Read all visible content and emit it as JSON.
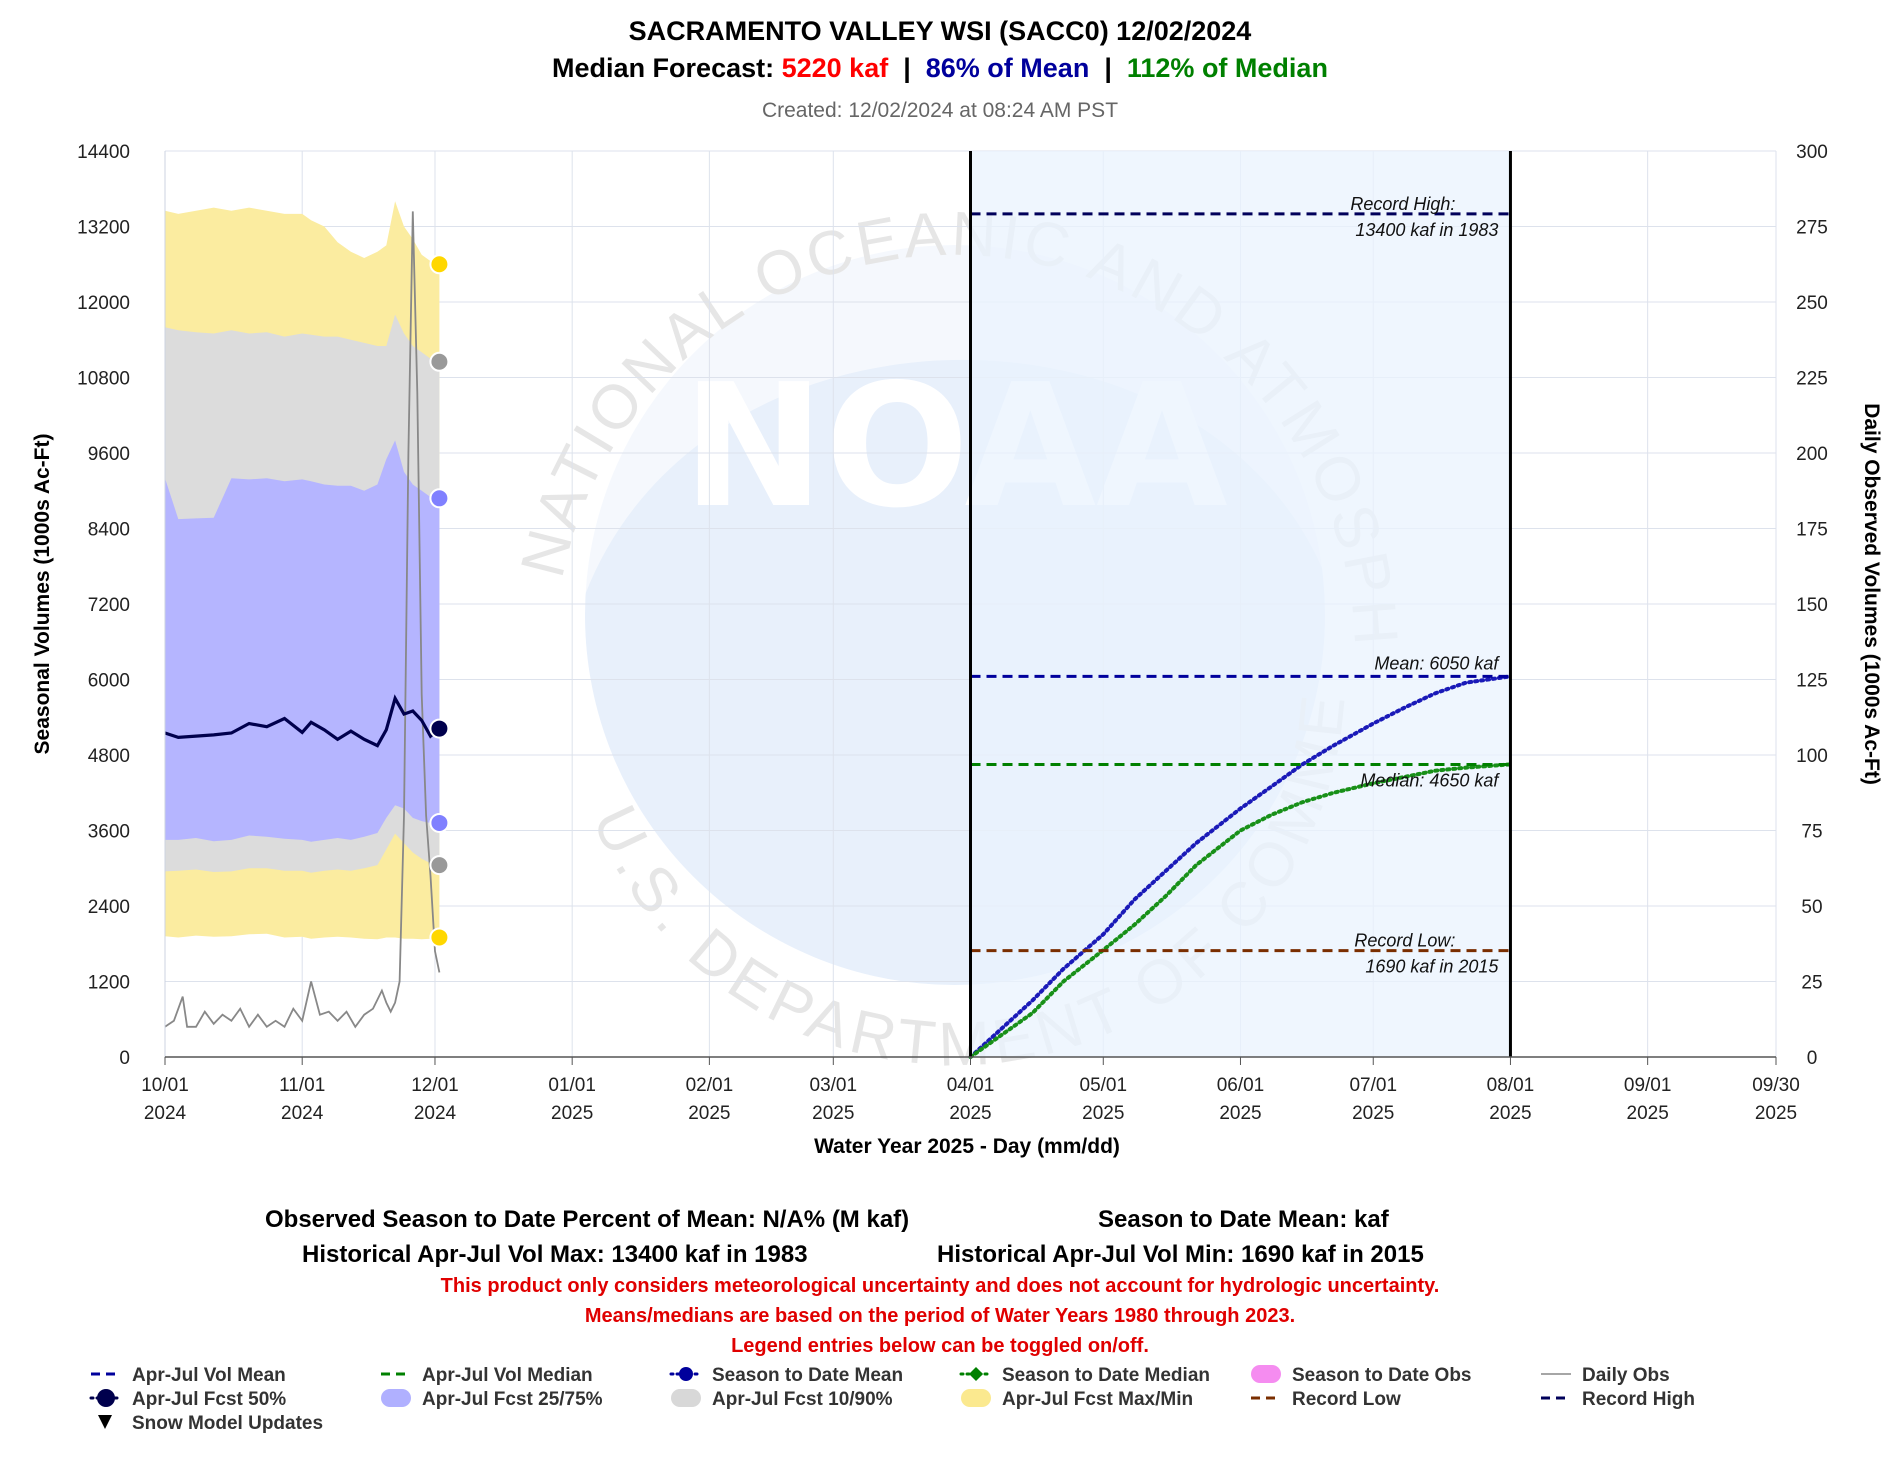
{
  "header": {
    "title": "SACRAMENTO VALLEY WSI (SACC0)  12/02/2024",
    "subtitle_label": "Median Forecast: ",
    "subtitle_forecast": "5220 kaf",
    "subtitle_sep1": "  |  ",
    "subtitle_mean": "86% of Mean",
    "subtitle_sep2": "  |  ",
    "subtitle_median": "112% of Median",
    "created": "Created: 12/02/2024 at 08:24 AM PST"
  },
  "colors": {
    "forecast": "#ff0000",
    "mean": "#00009c",
    "median": "#008000",
    "record_low": "#7a2e00",
    "record_high": "#00005a",
    "band_25_75": "#b5b5ff",
    "band_10_90": "#dcdcdc",
    "band_max_min": "#fbeca0",
    "daily_obs": "#888888",
    "season_mean_dots": "#1a1ab8",
    "season_median_dots": "#189018",
    "watermark": "#e8f0fb"
  },
  "chart_data": {
    "type": "line",
    "xlabel": "Water Year 2025 - Day (mm/dd)",
    "ylabel": "Seasonal Volumes (1000s Ac-Ft)",
    "y2label": "Daily Observed Volumes (1000s Ac-Ft)",
    "ylim": [
      0,
      14400
    ],
    "y2lim": [
      0,
      300
    ],
    "y_ticks": [
      "0",
      "1200",
      "2400",
      "3600",
      "4800",
      "6000",
      "7200",
      "8400",
      "9600",
      "10800",
      "12000",
      "13200",
      "14400"
    ],
    "y2_ticks": [
      "0",
      "25",
      "50",
      "75",
      "100",
      "125",
      "150",
      "175",
      "200",
      "225",
      "250",
      "275",
      "300"
    ],
    "x_ticks": [
      {
        "date": "2024-10-01",
        "l1": "10/01",
        "l2": "2024"
      },
      {
        "date": "2024-11-01",
        "l1": "11/01",
        "l2": "2024"
      },
      {
        "date": "2024-12-01",
        "l1": "12/01",
        "l2": "2024"
      },
      {
        "date": "2025-01-01",
        "l1": "01/01",
        "l2": "2025"
      },
      {
        "date": "2025-02-01",
        "l1": "02/01",
        "l2": "2025"
      },
      {
        "date": "2025-03-01",
        "l1": "03/01",
        "l2": "2025"
      },
      {
        "date": "2025-04-01",
        "l1": "04/01",
        "l2": "2025"
      },
      {
        "date": "2025-05-01",
        "l1": "05/01",
        "l2": "2025"
      },
      {
        "date": "2025-06-01",
        "l1": "06/01",
        "l2": "2025"
      },
      {
        "date": "2025-07-01",
        "l1": "07/01",
        "l2": "2025"
      },
      {
        "date": "2025-08-01",
        "l1": "08/01",
        "l2": "2025"
      },
      {
        "date": "2025-09-01",
        "l1": "09/01",
        "l2": "2025"
      },
      {
        "date": "2025-09-30",
        "l1": "09/30",
        "l2": "2025"
      }
    ],
    "x_range": [
      "2024-10-01",
      "2025-09-30"
    ],
    "season_start": "2025-04-01",
    "season_end": "2025-08-01",
    "grid": true,
    "reference_lines": [
      {
        "id": "record-high",
        "value": 13400,
        "label1": "Record High:",
        "label2": "13400 kaf in 1983"
      },
      {
        "id": "mean",
        "value": 6050,
        "label1": "Mean: 6050 kaf",
        "label2": ""
      },
      {
        "id": "median",
        "value": 4650,
        "label1": "Median: 4650 kaf",
        "label2": ""
      },
      {
        "id": "record-low",
        "value": 1690,
        "label1": "Record Low:",
        "label2": "1690 kaf in 2015"
      }
    ],
    "forecast_dates": [
      "2024-10-01",
      "2024-10-04",
      "2024-10-08",
      "2024-10-12",
      "2024-10-16",
      "2024-10-20",
      "2024-10-24",
      "2024-10-28",
      "2024-11-01",
      "2024-11-03",
      "2024-11-06",
      "2024-11-09",
      "2024-11-12",
      "2024-11-15",
      "2024-11-18",
      "2024-11-20",
      "2024-11-22",
      "2024-11-24",
      "2024-11-26",
      "2024-11-28",
      "2024-11-30",
      "2024-12-02"
    ],
    "fcst_50": [
      5150,
      5080,
      5100,
      5120,
      5150,
      5300,
      5250,
      5380,
      5160,
      5320,
      5200,
      5050,
      5180,
      5050,
      4950,
      5200,
      5700,
      5450,
      5500,
      5350,
      5100,
      5220
    ],
    "fcst_25": [
      3450,
      3450,
      3480,
      3430,
      3450,
      3520,
      3500,
      3470,
      3450,
      3420,
      3450,
      3480,
      3450,
      3500,
      3560,
      3800,
      4000,
      3950,
      3800,
      3750,
      3720,
      3720
    ],
    "fcst_75": [
      9200,
      8550,
      8560,
      8570,
      9200,
      9180,
      9200,
      9150,
      9180,
      9150,
      9100,
      9080,
      9080,
      9000,
      9100,
      9500,
      9800,
      9300,
      9100,
      9000,
      8900,
      8880
    ],
    "fcst_10": [
      2950,
      2960,
      2980,
      2940,
      2950,
      3000,
      3000,
      2960,
      2960,
      2930,
      2960,
      2980,
      2960,
      3000,
      3050,
      3300,
      3550,
      3400,
      3250,
      3150,
      3080,
      3050
    ],
    "fcst_90": [
      11600,
      11550,
      11520,
      11500,
      11550,
      11500,
      11520,
      11450,
      11500,
      11480,
      11450,
      11450,
      11400,
      11350,
      11300,
      11300,
      11800,
      11500,
      11300,
      11200,
      11100,
      11050
    ],
    "fcst_min": [
      1920,
      1900,
      1930,
      1910,
      1920,
      1950,
      1960,
      1900,
      1910,
      1880,
      1900,
      1910,
      1900,
      1880,
      1870,
      1900,
      1900,
      1880,
      1880,
      1870,
      1880,
      1900
    ],
    "fcst_max": [
      13450,
      13400,
      13450,
      13500,
      13450,
      13500,
      13450,
      13400,
      13400,
      13300,
      13200,
      12950,
      12800,
      12700,
      12800,
      12900,
      13600,
      13200,
      13000,
      12750,
      12650,
      12600
    ],
    "end_markers": [
      {
        "name": "max",
        "value": 12600,
        "color": "#ffd700"
      },
      {
        "name": "p90",
        "value": 11050,
        "color": "#999999"
      },
      {
        "name": "p75",
        "value": 8880,
        "color": "#8080ff"
      },
      {
        "name": "p50",
        "value": 5220,
        "color": "#00004d"
      },
      {
        "name": "p25",
        "value": 3720,
        "color": "#8080ff"
      },
      {
        "name": "p10",
        "value": 3050,
        "color": "#999999"
      },
      {
        "name": "min",
        "value": 1900,
        "color": "#ffd700"
      }
    ],
    "daily_obs_dates": [
      "2024-10-01",
      "2024-10-03",
      "2024-10-05",
      "2024-10-06",
      "2024-10-08",
      "2024-10-10",
      "2024-10-12",
      "2024-10-14",
      "2024-10-16",
      "2024-10-18",
      "2024-10-20",
      "2024-10-22",
      "2024-10-24",
      "2024-10-26",
      "2024-10-28",
      "2024-10-30",
      "2024-11-01",
      "2024-11-03",
      "2024-11-05",
      "2024-11-07",
      "2024-11-09",
      "2024-11-11",
      "2024-11-13",
      "2024-11-15",
      "2024-11-17",
      "2024-11-19",
      "2024-11-20",
      "2024-11-21",
      "2024-11-22",
      "2024-11-23",
      "2024-11-24",
      "2024-11-25",
      "2024-11-26",
      "2024-11-27",
      "2024-11-28",
      "2024-11-29",
      "2024-11-30",
      "2024-12-01",
      "2024-12-02"
    ],
    "daily_obs": [
      10,
      12,
      20,
      10,
      10,
      15,
      11,
      14,
      12,
      16,
      10,
      14,
      10,
      12,
      10,
      16,
      12,
      25,
      14,
      15,
      12,
      15,
      10,
      14,
      16,
      22,
      18,
      15,
      18,
      25,
      80,
      200,
      280,
      220,
      120,
      80,
      60,
      35,
      28
    ],
    "season_mean_dates": [
      "2025-04-01",
      "2025-04-08",
      "2025-04-15",
      "2025-04-22",
      "2025-05-01",
      "2025-05-08",
      "2025-05-15",
      "2025-05-22",
      "2025-06-01",
      "2025-06-08",
      "2025-06-15",
      "2025-06-22",
      "2025-07-01",
      "2025-07-08",
      "2025-07-15",
      "2025-07-22",
      "2025-08-01"
    ],
    "season_mean": [
      0,
      450,
      900,
      1400,
      1950,
      2500,
      2950,
      3400,
      3950,
      4300,
      4650,
      4950,
      5300,
      5550,
      5780,
      5950,
      6050
    ],
    "season_median_dates": [
      "2025-04-01",
      "2025-04-08",
      "2025-04-15",
      "2025-04-22",
      "2025-05-01",
      "2025-05-08",
      "2025-05-15",
      "2025-05-22",
      "2025-06-01",
      "2025-06-08",
      "2025-06-15",
      "2025-06-22",
      "2025-07-01",
      "2025-07-08",
      "2025-07-15",
      "2025-07-22",
      "2025-08-01"
    ],
    "season_median": [
      0,
      350,
      700,
      1200,
      1700,
      2100,
      2550,
      3050,
      3600,
      3850,
      4050,
      4200,
      4350,
      4450,
      4550,
      4600,
      4650
    ]
  },
  "stats": {
    "line1a": "Observed Season to Date Percent of Mean: N/A% (M kaf)",
    "line1b": "Season to Date Mean:  kaf",
    "line2a": "Historical Apr-Jul Vol Max: 13400 kaf in 1983",
    "line2b": "Historical Apr-Jul Vol Min: 1690 kaf in 2015"
  },
  "notes": [
    "This product only considers meteorological uncertainty and does not account for hydrologic uncertainty.",
    "Means/medians are based on the period of Water Years 1980 through 2023.",
    "Legend entries below can be toggled on/off."
  ],
  "legend": [
    {
      "id": "apr-jul-vol-mean",
      "label": "Apr-Jul Vol Mean",
      "symbol": "dash",
      "color": "#00009c"
    },
    {
      "id": "apr-jul-vol-median",
      "label": "Apr-Jul Vol Median",
      "symbol": "dash",
      "color": "#008000"
    },
    {
      "id": "season-to-date-mean",
      "label": "Season to Date Mean",
      "symbol": "dotline-circle",
      "color": "#00009c"
    },
    {
      "id": "season-to-date-median",
      "label": "Season to Date Median",
      "symbol": "dotline-diamond",
      "color": "#008000"
    },
    {
      "id": "season-to-date-obs",
      "label": "Season to Date Obs",
      "symbol": "blob",
      "color": "#f58cf0"
    },
    {
      "id": "daily-obs",
      "label": "Daily Obs",
      "symbol": "thinline",
      "color": "#888888"
    },
    {
      "id": "apr-jul-fcst-50",
      "label": "Apr-Jul Fcst 50%",
      "symbol": "dotline-bigcircle",
      "color": "#00004d"
    },
    {
      "id": "apr-jul-fcst-25-75",
      "label": "Apr-Jul Fcst 25/75%",
      "symbol": "blob",
      "color": "#b0b0ff"
    },
    {
      "id": "apr-jul-fcst-10-90",
      "label": "Apr-Jul Fcst 10/90%",
      "symbol": "blob",
      "color": "#d8d8d8"
    },
    {
      "id": "apr-jul-fcst-max-min",
      "label": "Apr-Jul Fcst Max/Min",
      "symbol": "blob",
      "color": "#fbe98f"
    },
    {
      "id": "record-low",
      "label": "Record Low",
      "symbol": "dash",
      "color": "#7a2e00"
    },
    {
      "id": "record-high",
      "label": "Record High",
      "symbol": "dash",
      "color": "#00005a"
    },
    {
      "id": "snow-model-updates",
      "label": "Snow Model Updates",
      "symbol": "triangle",
      "color": "#000000"
    }
  ],
  "watermark": {
    "logo_text": "NOAA",
    "ring_text": "NATIONAL OCEANIC AND ATMOSPHERIC ADMINISTRATION",
    "ring_text_bottom": "U.S. DEPARTMENT OF COMMERCE"
  }
}
